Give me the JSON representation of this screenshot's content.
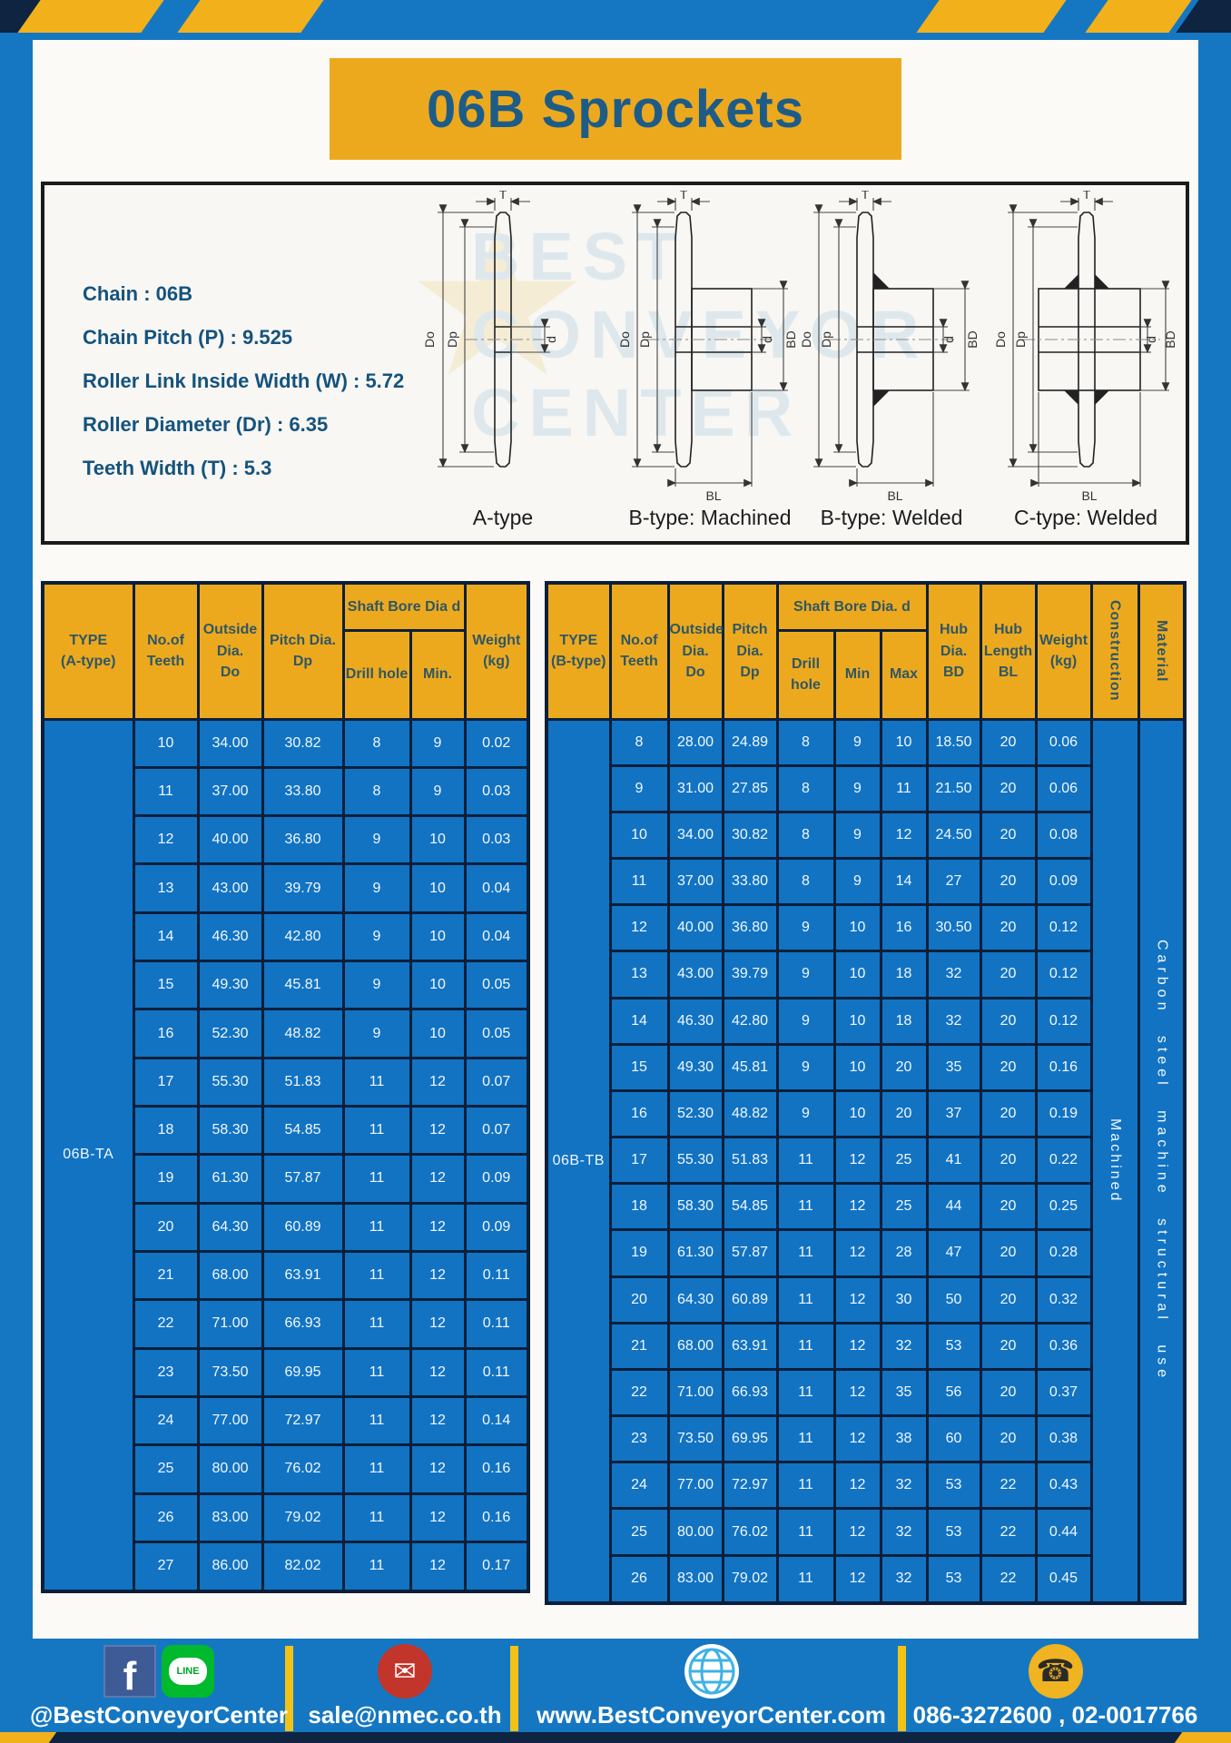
{
  "header": {
    "title": "06B Sprockets"
  },
  "specs": {
    "lines": "Chain : 06B\nChain Pitch (P) : 9.525\nRoller Link Inside Width (W) : 5.72\nRoller Diameter (Dr) : 6.35\nTeeth Width (T) : 5.3"
  },
  "drawings": {
    "watermark": "BEST\nCONVEYOR\nCENTER",
    "items": [
      {
        "caption": "A-type"
      },
      {
        "caption": "B-type: Machined"
      },
      {
        "caption": "B-type: Welded"
      },
      {
        "caption": "C-type: Welded"
      }
    ],
    "dims": {
      "t": "T",
      "do": "Do",
      "dp": "Dp",
      "d": "d",
      "bd": "BD",
      "bl": "BL"
    }
  },
  "table_a": {
    "header": {
      "type": "TYPE\n(A-type)",
      "teeth": "No.of\nTeeth",
      "outside": "Outside\nDia.\nDo",
      "pitch": "Pitch Dia.\nDp",
      "bore_group": "Shaft Bore Dia d",
      "drill": "Drill hole",
      "min": "Min.",
      "weight": "Weight\n(kg)"
    },
    "type_value": "06B-TA",
    "rows": [
      [
        "10",
        "34.00",
        "30.82",
        "8",
        "9",
        "0.02"
      ],
      [
        "11",
        "37.00",
        "33.80",
        "8",
        "9",
        "0.03"
      ],
      [
        "12",
        "40.00",
        "36.80",
        "9",
        "10",
        "0.03"
      ],
      [
        "13",
        "43.00",
        "39.79",
        "9",
        "10",
        "0.04"
      ],
      [
        "14",
        "46.30",
        "42.80",
        "9",
        "10",
        "0.04"
      ],
      [
        "15",
        "49.30",
        "45.81",
        "9",
        "10",
        "0.05"
      ],
      [
        "16",
        "52.30",
        "48.82",
        "9",
        "10",
        "0.05"
      ],
      [
        "17",
        "55.30",
        "51.83",
        "11",
        "12",
        "0.07"
      ],
      [
        "18",
        "58.30",
        "54.85",
        "11",
        "12",
        "0.07"
      ],
      [
        "19",
        "61.30",
        "57.87",
        "11",
        "12",
        "0.09"
      ],
      [
        "20",
        "64.30",
        "60.89",
        "11",
        "12",
        "0.09"
      ],
      [
        "21",
        "68.00",
        "63.91",
        "11",
        "12",
        "0.11"
      ],
      [
        "22",
        "71.00",
        "66.93",
        "11",
        "12",
        "0.11"
      ],
      [
        "23",
        "73.50",
        "69.95",
        "11",
        "12",
        "0.11"
      ],
      [
        "24",
        "77.00",
        "72.97",
        "11",
        "12",
        "0.14"
      ],
      [
        "25",
        "80.00",
        "76.02",
        "11",
        "12",
        "0.16"
      ],
      [
        "26",
        "83.00",
        "79.02",
        "11",
        "12",
        "0.16"
      ],
      [
        "27",
        "86.00",
        "82.02",
        "11",
        "12",
        "0.17"
      ]
    ]
  },
  "table_b": {
    "header": {
      "type": "TYPE\n(B-type)",
      "teeth": "No.of\nTeeth",
      "outside": "Outside\nDia.\nDo",
      "pitch": "Pitch\nDia.\nDp",
      "bore_group": "Shaft Bore Dia. d",
      "drill": "Drill hole",
      "min": "Min",
      "max": "Max",
      "hub_dia": "Hub\nDia.\nBD",
      "hub_len": "Hub\nLength\nBL",
      "weight": "Weight\n(kg)",
      "construction": "Construction",
      "material": "Material"
    },
    "type_value": "06B-TB",
    "construction_value": "Machined",
    "material_value": "Carbon steel machine structural use",
    "rows": [
      [
        "8",
        "28.00",
        "24.89",
        "8",
        "9",
        "10",
        "18.50",
        "20",
        "0.06"
      ],
      [
        "9",
        "31.00",
        "27.85",
        "8",
        "9",
        "11",
        "21.50",
        "20",
        "0.06"
      ],
      [
        "10",
        "34.00",
        "30.82",
        "8",
        "9",
        "12",
        "24.50",
        "20",
        "0.08"
      ],
      [
        "11",
        "37.00",
        "33.80",
        "8",
        "9",
        "14",
        "27",
        "20",
        "0.09"
      ],
      [
        "12",
        "40.00",
        "36.80",
        "9",
        "10",
        "16",
        "30.50",
        "20",
        "0.12"
      ],
      [
        "13",
        "43.00",
        "39.79",
        "9",
        "10",
        "18",
        "32",
        "20",
        "0.12"
      ],
      [
        "14",
        "46.30",
        "42.80",
        "9",
        "10",
        "18",
        "32",
        "20",
        "0.12"
      ],
      [
        "15",
        "49.30",
        "45.81",
        "9",
        "10",
        "20",
        "35",
        "20",
        "0.16"
      ],
      [
        "16",
        "52.30",
        "48.82",
        "9",
        "10",
        "20",
        "37",
        "20",
        "0.19"
      ],
      [
        "17",
        "55.30",
        "51.83",
        "11",
        "12",
        "25",
        "41",
        "20",
        "0.22"
      ],
      [
        "18",
        "58.30",
        "54.85",
        "11",
        "12",
        "25",
        "44",
        "20",
        "0.25"
      ],
      [
        "19",
        "61.30",
        "57.87",
        "11",
        "12",
        "28",
        "47",
        "20",
        "0.28"
      ],
      [
        "20",
        "64.30",
        "60.89",
        "11",
        "12",
        "30",
        "50",
        "20",
        "0.32"
      ],
      [
        "21",
        "68.00",
        "63.91",
        "11",
        "12",
        "32",
        "53",
        "20",
        "0.36"
      ],
      [
        "22",
        "71.00",
        "66.93",
        "11",
        "12",
        "35",
        "56",
        "20",
        "0.37"
      ],
      [
        "23",
        "73.50",
        "69.95",
        "11",
        "12",
        "38",
        "60",
        "20",
        "0.38"
      ],
      [
        "24",
        "77.00",
        "72.97",
        "11",
        "12",
        "32",
        "53",
        "22",
        "0.43"
      ],
      [
        "25",
        "80.00",
        "76.02",
        "11",
        "12",
        "32",
        "53",
        "22",
        "0.44"
      ],
      [
        "26",
        "83.00",
        "79.02",
        "11",
        "12",
        "32",
        "53",
        "22",
        "0.45"
      ]
    ]
  },
  "footer": {
    "fb_letter": "f",
    "line_text": "LINE",
    "mail_glyph": "✉",
    "phone_glyph": "☎",
    "facebook_line_label": "@BestConveyorCenter",
    "email_label": "sale@nmec.co.th",
    "website_label": "www.BestConveyorCenter.com",
    "phone_label": "086-3272600 , 02-0017766"
  },
  "colors": {
    "frame_blue": "#1577c2",
    "cell_blue": "#1273c3",
    "header_yellow": "#eda91e",
    "border_navy": "#0c1f3a"
  }
}
